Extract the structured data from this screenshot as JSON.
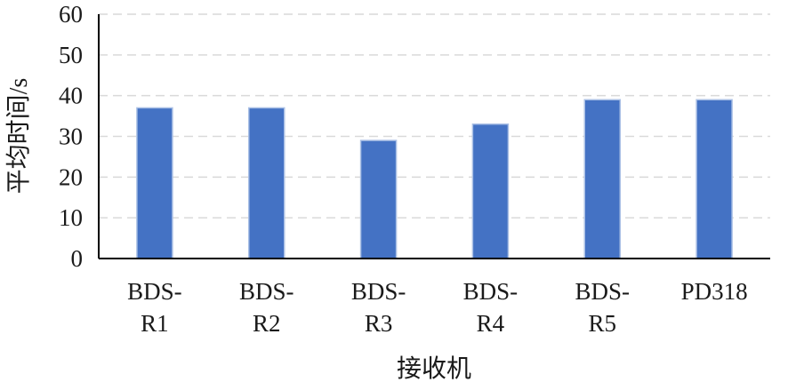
{
  "chart_data": {
    "type": "bar",
    "categories": [
      [
        "BDS-",
        "R1"
      ],
      [
        "BDS-",
        "R2"
      ],
      [
        "BDS-",
        "R3"
      ],
      [
        "BDS-",
        "R4"
      ],
      [
        "BDS-",
        "R5"
      ],
      [
        "PD318"
      ]
    ],
    "values": [
      37,
      37,
      29,
      33,
      39,
      39
    ],
    "xlabel": "接收机",
    "ylabel": "平均时间/s",
    "ylim": [
      0,
      60
    ],
    "yticks": [
      0,
      10,
      20,
      30,
      40,
      50,
      60
    ],
    "grid": true,
    "bar_color": "#4472c4",
    "bar_edge_color": "#a9bfe5"
  }
}
